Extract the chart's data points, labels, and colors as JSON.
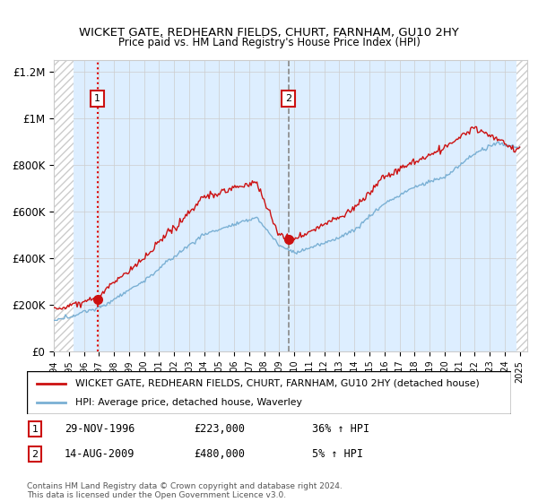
{
  "title": "WICKET GATE, REDHEARN FIELDS, CHURT, FARNHAM, GU10 2HY",
  "subtitle": "Price paid vs. HM Land Registry's House Price Index (HPI)",
  "ylabel_ticks": [
    "£0",
    "£200K",
    "£400K",
    "£600K",
    "£800K",
    "£1M",
    "£1.2M"
  ],
  "ylim": [
    0,
    1250000
  ],
  "xlim_start": 1994,
  "xlim_end": 2025.5,
  "sale1_date": 1996.91,
  "sale1_price": 223000,
  "sale1_label": "1",
  "sale1_line_color": "#dd0000",
  "sale1_line_style": "dotted",
  "sale2_date": 2009.62,
  "sale2_price": 480000,
  "sale2_label": "2",
  "sale2_line_color": "#888888",
  "sale2_line_style": "dashed",
  "legend_line1": "WICKET GATE, REDHEARN FIELDS, CHURT, FARNHAM, GU10 2HY (detached house)",
  "legend_line2": "HPI: Average price, detached house, Waverley",
  "note1_label": "1",
  "note1_date": "29-NOV-1996",
  "note1_price": "£223,000",
  "note1_hpi": "36% ↑ HPI",
  "note2_label": "2",
  "note2_date": "14-AUG-2009",
  "note2_price": "£480,000",
  "note2_hpi": "5% ↑ HPI",
  "copyright": "Contains HM Land Registry data © Crown copyright and database right 2024.\nThis data is licensed under the Open Government Licence v3.0.",
  "hpi_color": "#7ab0d4",
  "price_color": "#cc1111",
  "sale_marker_color": "#cc1111",
  "grid_color": "#cccccc",
  "background_color": "#ffffff",
  "chart_bg_color": "#ddeeff",
  "hatch_color": "#cccccc"
}
